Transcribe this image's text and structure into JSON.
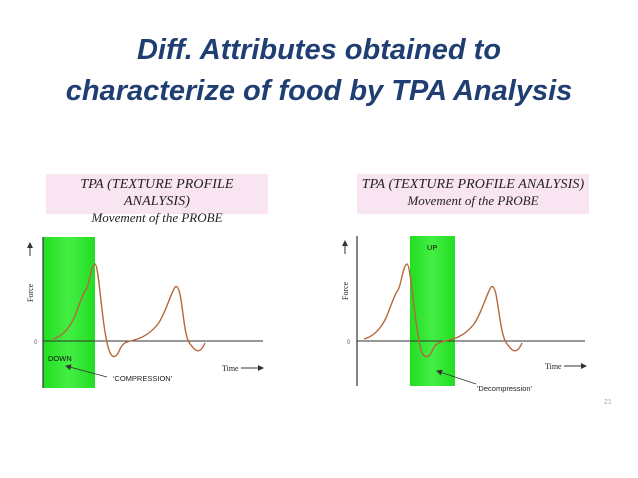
{
  "slide": {
    "title_line1": "Diff. Attributes obtained to",
    "title_line2": "characterize of food by TPA Analysis",
    "page_number": "21"
  },
  "panels": [
    {
      "header_line1": "TPA (TEXTURE PROFILE ANALYSIS)",
      "header_line2": "Movement of the PROBE",
      "y_axis_label": "Force",
      "zero_label": "0",
      "time_label": "Time",
      "band_label": "DOWN",
      "phase_label": "'COMPRESSION'"
    },
    {
      "header_line1": "TPA (TEXTURE PROFILE ANALYSIS)",
      "header_line2": "Movement of the PROBE",
      "y_axis_label": "Force",
      "zero_label": "0",
      "time_label": "Time",
      "band_label": "UP",
      "phase_label": "'Decompression'"
    }
  ],
  "colors": {
    "title": "#1f3f73",
    "header_bg": "#f9e4f2",
    "band_green": "#22dd22",
    "curve": "#b5683d"
  }
}
